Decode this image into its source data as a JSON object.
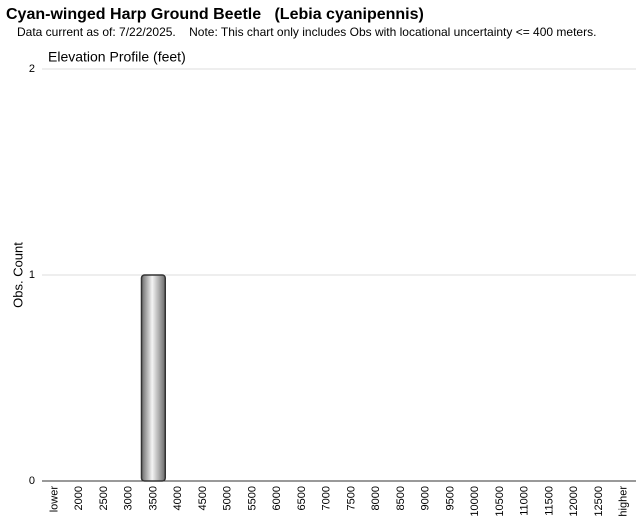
{
  "chart_data": {
    "type": "bar",
    "title": "Cyan-winged Harp Ground Beetle   (Lebia cyanipennis)",
    "subtitle": "Data current as of: 7/22/2025.    Note: This chart only includes Obs with locational uncertainty <= 400 meters.",
    "chart_title": "Elevation Profile (feet)",
    "y_label": "Obs. Count",
    "categories": [
      "lower",
      "2000",
      "2500",
      "3000",
      "3500",
      "4000",
      "4500",
      "5000",
      "5500",
      "6000",
      "6500",
      "7000",
      "7500",
      "8000",
      "8500",
      "9000",
      "9500",
      "10000",
      "10500",
      "11000",
      "11500",
      "12000",
      "12500",
      "higher"
    ],
    "values": [
      0,
      0,
      0,
      0,
      1,
      0,
      0,
      0,
      0,
      0,
      0,
      0,
      0,
      0,
      0,
      0,
      0,
      0,
      0,
      0,
      0,
      0,
      0,
      0
    ],
    "color": "#999999",
    "ylim": [
      0,
      2
    ],
    "yticks": [
      0,
      1,
      2
    ],
    "grid": true
  }
}
